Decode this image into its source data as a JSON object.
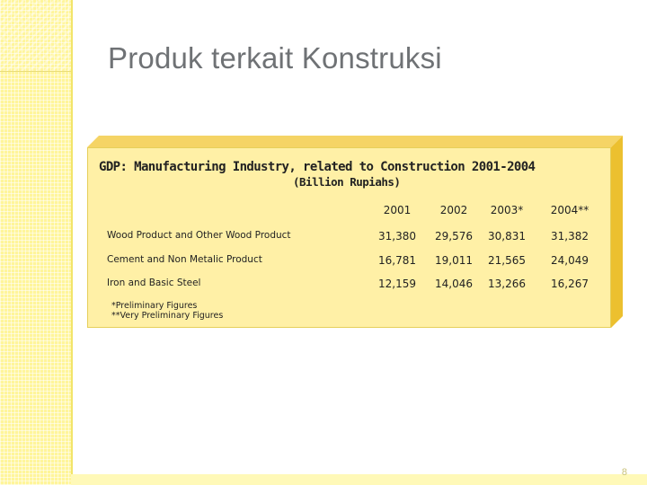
{
  "slide": {
    "title": "Produk terkait Konstruksi",
    "number": "8"
  },
  "panel": {
    "heading": "GDP: Manufacturing Industry, related to Construction 2001-2004",
    "subheading": "(Billion Rupiahs)"
  },
  "table": {
    "columns": [
      "2001",
      "2002",
      "2003*",
      "2004**"
    ],
    "rows": [
      {
        "label": "Wood Product and Other Wood Product",
        "values": [
          "31,380",
          "29,576",
          "30,831",
          "31,382"
        ]
      },
      {
        "label": "Cement and Non Metalic Product",
        "values": [
          "16,781",
          "19,011",
          "21,565",
          "24,049"
        ]
      },
      {
        "label": "Iron and Basic Steel",
        "values": [
          "12,159",
          "14,046",
          "13,266",
          "16,267"
        ]
      }
    ]
  },
  "footnotes": [
    "*Preliminary Figures",
    "**Very Preliminary Figures"
  ],
  "colors": {
    "band": "#fff59a",
    "panel": "#fff0a6",
    "panel_depth": "#f0c63a",
    "title": "#6f7275"
  }
}
